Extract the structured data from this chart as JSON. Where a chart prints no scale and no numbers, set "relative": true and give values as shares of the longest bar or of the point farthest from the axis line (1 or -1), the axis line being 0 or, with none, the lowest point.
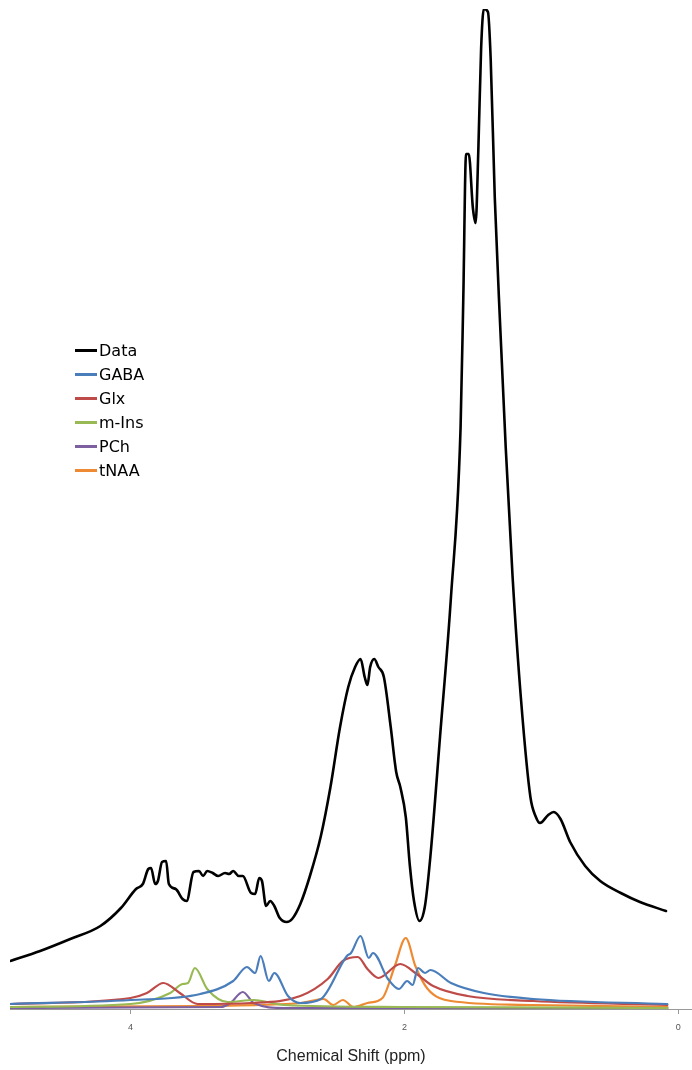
{
  "chart_data": {
    "type": "line",
    "xlabel": "Chemical Shift (ppm)",
    "relative": true,
    "xlim": [
      4.88,
      -0.1
    ],
    "xticks": [
      4,
      2,
      0
    ],
    "grid": false,
    "legend": "left",
    "marker": "none",
    "tick_labels": "x",
    "series": [
      {
        "name": "Data",
        "color": "#000000",
        "x": [
          4.88,
          4.66,
          4.44,
          4.22,
          4.07,
          3.96,
          3.91,
          3.87,
          3.85,
          3.82,
          3.8,
          3.77,
          3.74,
          3.72,
          3.67,
          3.62,
          3.59,
          3.54,
          3.5,
          3.47,
          3.44,
          3.4,
          3.36,
          3.31,
          3.28,
          3.25,
          3.21,
          3.18,
          3.12,
          3.09,
          3.06,
          3.04,
          3.01,
          2.98,
          2.95,
          2.91,
          2.86,
          2.82,
          2.76,
          2.69,
          2.61,
          2.54,
          2.47,
          2.41,
          2.36,
          2.32,
          2.29,
          2.27,
          2.25,
          2.22,
          2.19,
          2.15,
          2.1,
          2.06,
          2.03,
          1.99,
          1.96,
          1.93,
          1.89,
          1.85,
          1.81,
          1.74,
          1.66,
          1.59,
          1.57,
          1.55,
          1.53,
          1.5,
          1.48,
          1.46,
          1.44,
          1.42,
          1.39,
          1.37,
          1.34,
          1.3,
          1.26,
          1.21,
          1.15,
          1.08,
          1.04,
          1.01,
          0.95,
          0.91,
          0.86,
          0.79,
          0.68,
          0.57,
          0.42,
          0.28,
          0.09
        ],
        "values": [
          0.048,
          0.058,
          0.07,
          0.083,
          0.101,
          0.12,
          0.125,
          0.14,
          0.141,
          0.125,
          0.128,
          0.147,
          0.148,
          0.125,
          0.12,
          0.11,
          0.108,
          0.137,
          0.138,
          0.133,
          0.138,
          0.136,
          0.133,
          0.136,
          0.135,
          0.138,
          0.133,
          0.133,
          0.116,
          0.115,
          0.131,
          0.128,
          0.103,
          0.108,
          0.103,
          0.091,
          0.087,
          0.09,
          0.105,
          0.133,
          0.173,
          0.222,
          0.282,
          0.322,
          0.342,
          0.35,
          0.332,
          0.324,
          0.342,
          0.35,
          0.342,
          0.332,
          0.282,
          0.237,
          0.222,
          0.192,
          0.143,
          0.108,
          0.088,
          0.103,
          0.153,
          0.272,
          0.412,
          0.581,
          0.711,
          0.855,
          0.855,
          0.801,
          0.786,
          0.86,
          0.96,
          1,
          0.997,
          0.95,
          0.811,
          0.681,
          0.561,
          0.432,
          0.312,
          0.212,
          0.192,
          0.186,
          0.194,
          0.197,
          0.19,
          0.167,
          0.143,
          0.128,
          0.116,
          0.107,
          0.098
        ]
      },
      {
        "name": "GABA",
        "color": "#4a7ebb",
        "x": [
          4.88,
          4.0,
          3.49,
          3.25,
          3.15,
          3.09,
          3.05,
          2.99,
          2.95,
          2.85,
          2.76,
          2.61,
          2.42,
          2.39,
          2.32,
          2.26,
          2.23,
          2.12,
          2.04,
          1.98,
          1.94,
          1.9,
          1.85,
          1.81,
          1.66,
          1.42,
          1.06,
          0.08
        ],
        "values": [
          0.005,
          0.009,
          0.015,
          0.028,
          0.042,
          0.036,
          0.053,
          0.028,
          0.036,
          0.013,
          0.006,
          0.01,
          0.053,
          0.056,
          0.073,
          0.051,
          0.056,
          0.03,
          0.02,
          0.028,
          0.024,
          0.041,
          0.036,
          0.039,
          0.026,
          0.016,
          0.01,
          0.005
        ]
      },
      {
        "name": "Glx",
        "color": "#be4b48",
        "x": [
          4.88,
          4.0,
          3.88,
          3.76,
          3.64,
          3.51,
          3.12,
          2.76,
          2.56,
          2.45,
          2.34,
          2.27,
          2.19,
          2.03,
          1.91,
          1.79,
          1.54,
          1.06,
          0.08
        ],
        "values": [
          0.005,
          0.011,
          0.016,
          0.026,
          0.016,
          0.005,
          0.006,
          0.013,
          0.03,
          0.048,
          0.052,
          0.04,
          0.031,
          0.045,
          0.035,
          0.023,
          0.013,
          0.008,
          0.004
        ]
      },
      {
        "name": "m-Ins",
        "color": "#98b954",
        "x": [
          4.88,
          4.0,
          3.71,
          3.62,
          3.58,
          3.53,
          3.44,
          3.29,
          3.1,
          2.88,
          2.03,
          0.08
        ],
        "values": [
          0.002,
          0.005,
          0.016,
          0.025,
          0.026,
          0.041,
          0.02,
          0.007,
          0.009,
          0.004,
          0.002,
          0.001
        ]
      },
      {
        "name": "PCh",
        "color": "#7d60a0",
        "x": [
          4.88,
          3.34,
          3.27,
          3.18,
          3.1,
          2.88,
          0.08
        ],
        "values": [
          0.001,
          0.002,
          0.006,
          0.017,
          0.006,
          0.001,
          0.001
        ]
      },
      {
        "name": "tNAA",
        "color": "#ed8a33",
        "x": [
          4.88,
          3.49,
          2.76,
          2.59,
          2.52,
          2.45,
          2.37,
          2.27,
          2.16,
          2.07,
          1.99,
          1.92,
          1.83,
          1.66,
          1.06,
          0.08
        ],
        "values": [
          0.002,
          0.003,
          0.006,
          0.01,
          0.004,
          0.009,
          0.002,
          0.006,
          0.011,
          0.043,
          0.071,
          0.043,
          0.02,
          0.008,
          0.004,
          0.002
        ]
      }
    ]
  }
}
